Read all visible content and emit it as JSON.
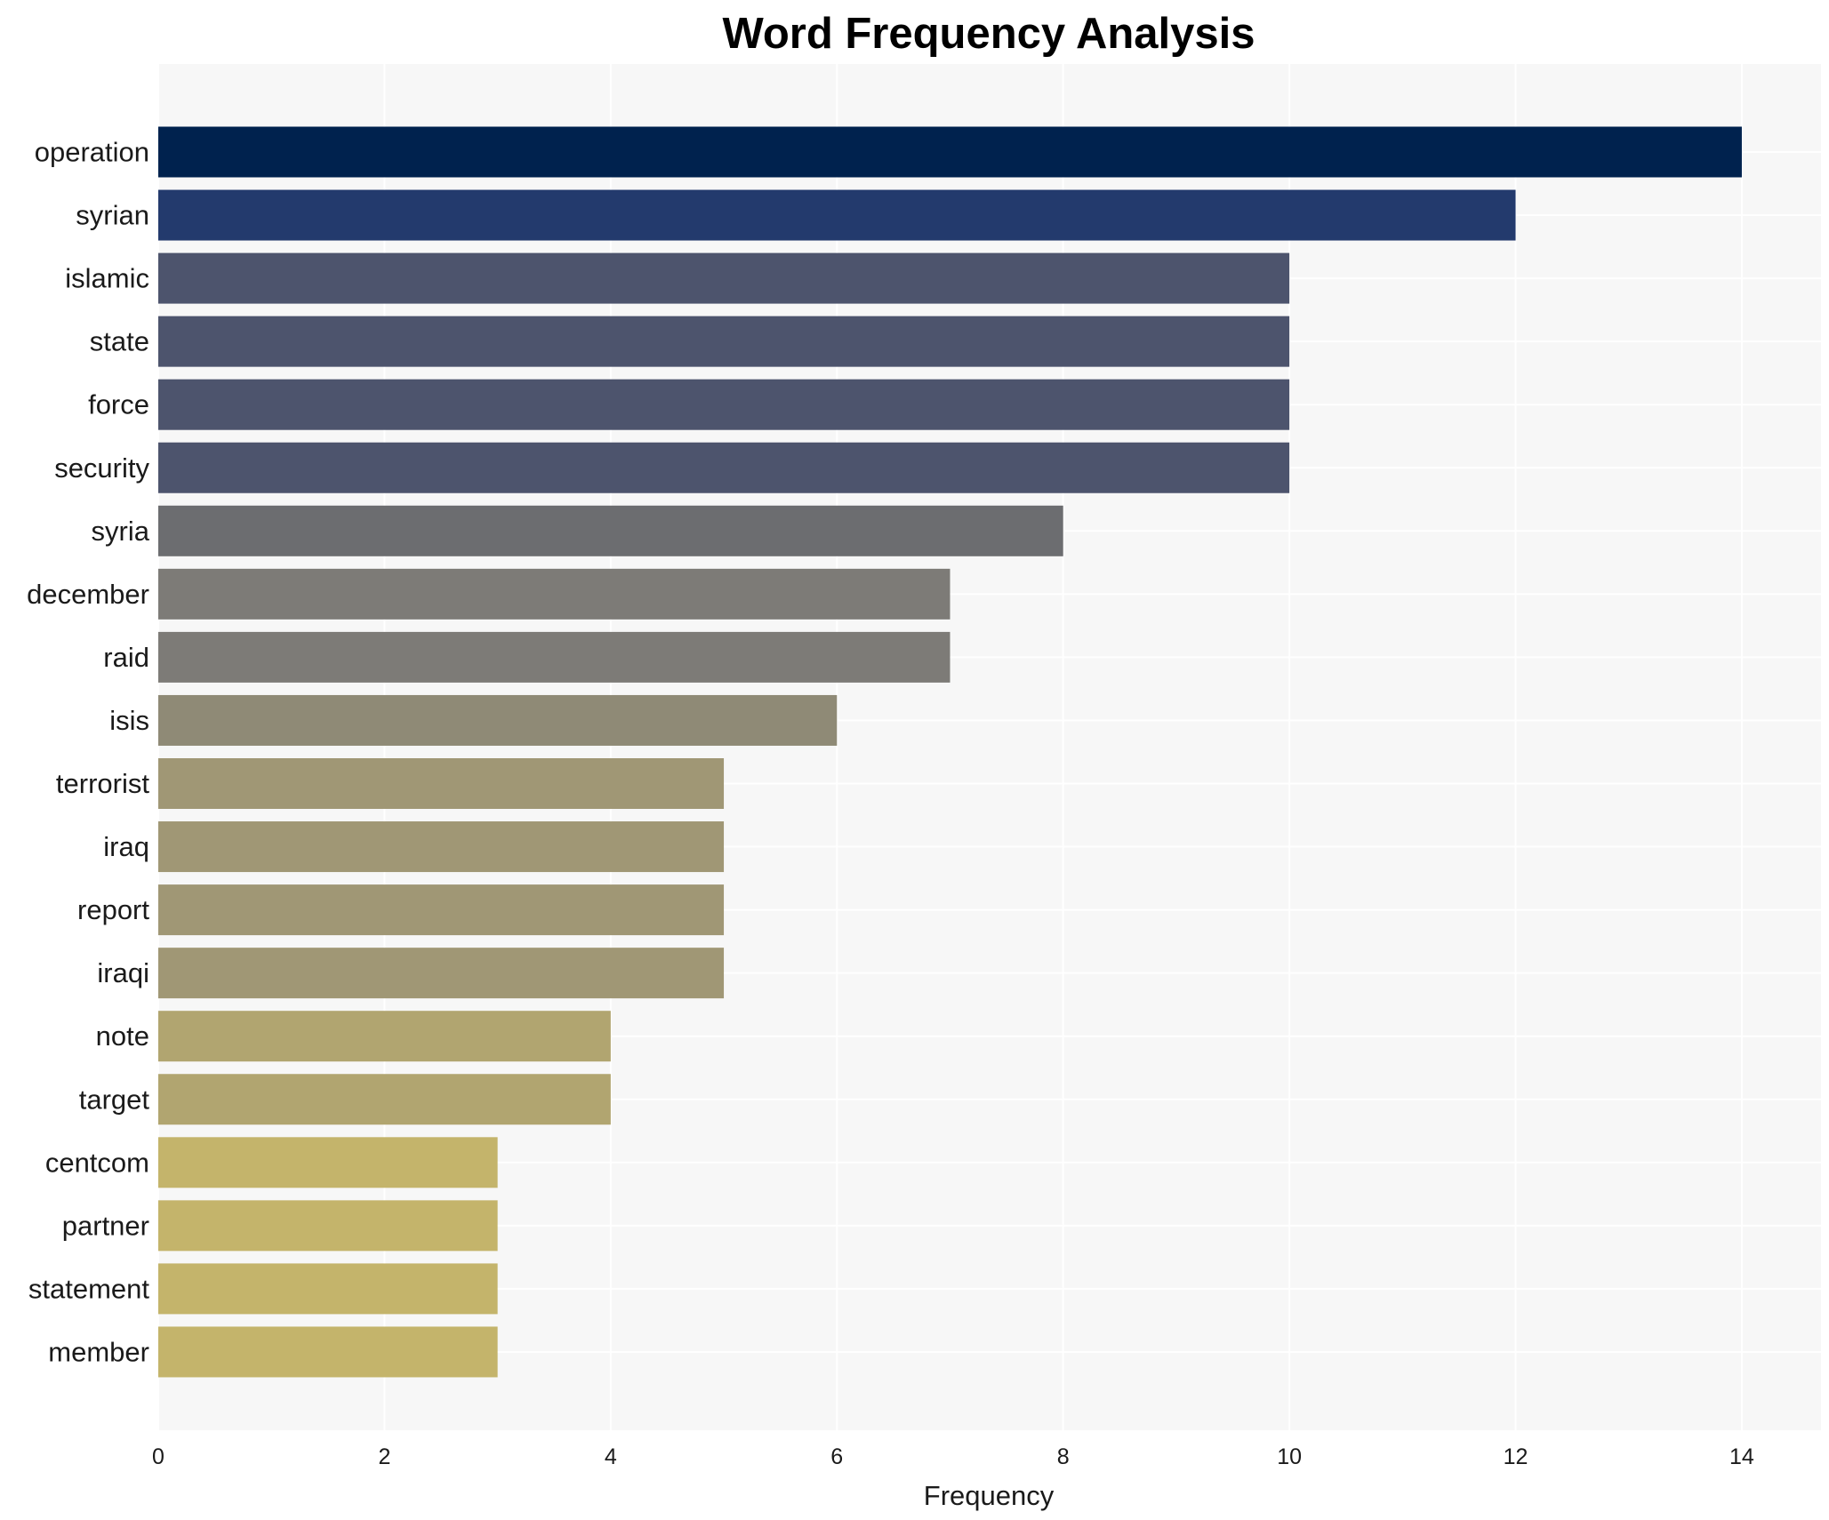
{
  "chart_data": {
    "type": "bar",
    "orientation": "horizontal",
    "title": "Word Frequency Analysis",
    "xlabel": "Frequency",
    "ylabel": "",
    "xlim": [
      0,
      14.7
    ],
    "xticks": [
      0,
      2,
      4,
      6,
      8,
      10,
      12,
      14
    ],
    "grid": true,
    "categories": [
      "operation",
      "syrian",
      "islamic",
      "state",
      "force",
      "security",
      "syria",
      "december",
      "raid",
      "isis",
      "terrorist",
      "iraq",
      "report",
      "iraqi",
      "note",
      "target",
      "centcom",
      "partner",
      "statement",
      "member"
    ],
    "values": [
      14,
      12,
      10,
      10,
      10,
      10,
      8,
      7,
      7,
      6,
      5,
      5,
      5,
      5,
      4,
      4,
      3,
      3,
      3,
      3
    ],
    "colors": [
      "#00224e",
      "#233a6d",
      "#4d546d",
      "#4d546d",
      "#4d546d",
      "#4d546d",
      "#6c6d70",
      "#7d7b77",
      "#7d7b77",
      "#8f8a76",
      "#a09775",
      "#a09775",
      "#a09775",
      "#a09775",
      "#b1a570",
      "#b1a570",
      "#c4b46b",
      "#c4b46b",
      "#c4b46b",
      "#c4b46b"
    ]
  }
}
